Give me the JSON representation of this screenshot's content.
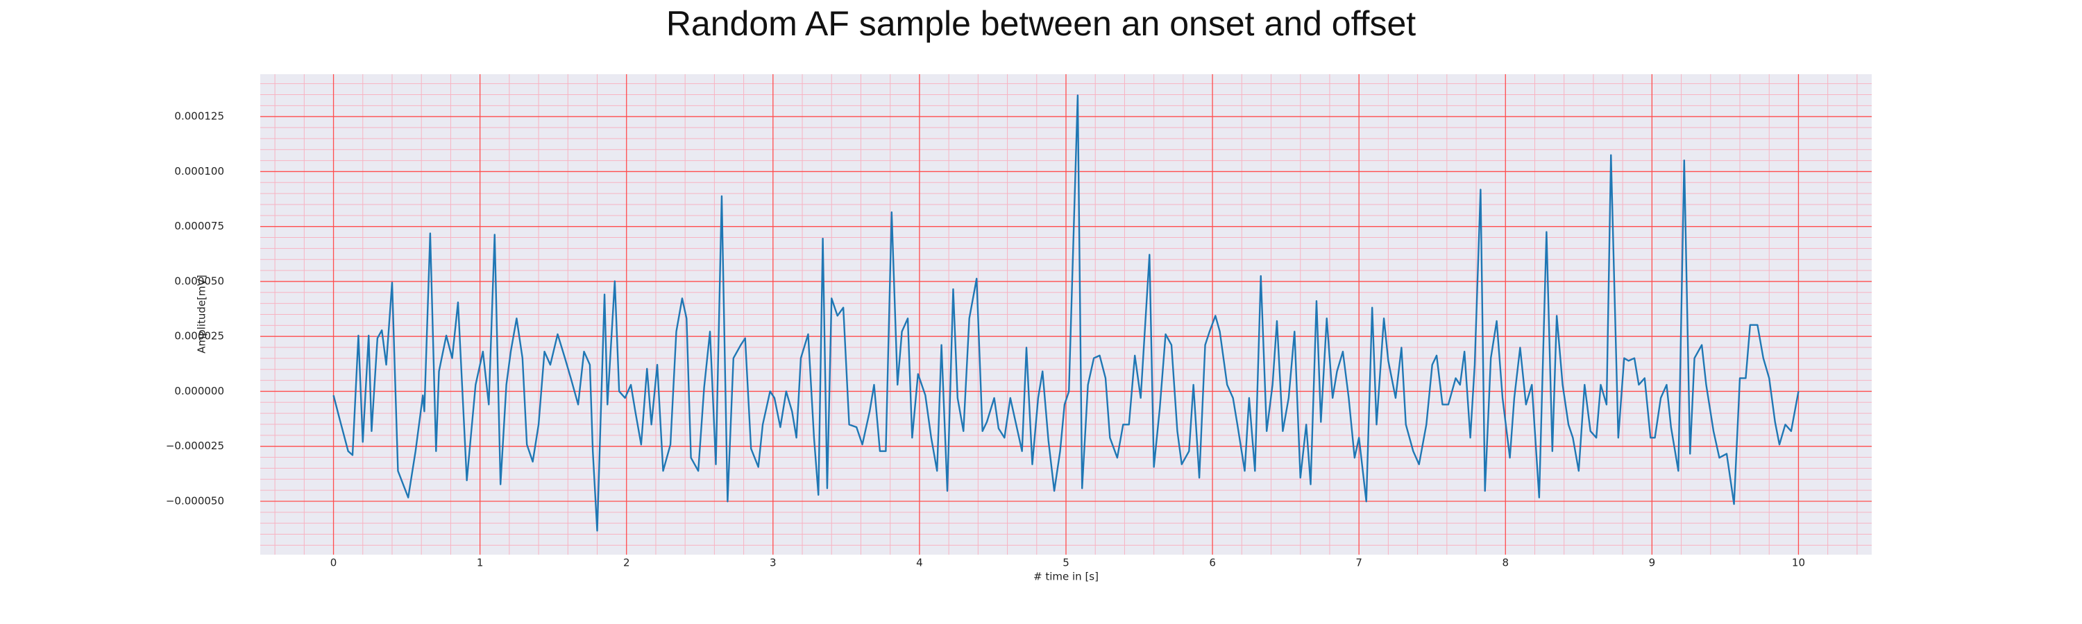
{
  "chart_data": {
    "type": "line",
    "title": "Random AF sample between an onset and offset",
    "xlabel": "# time in [s]",
    "ylabel": "Amplitude[mV]",
    "color": "#1f77b4",
    "grid": true,
    "minor_grid": true,
    "background": "#eaeaf2",
    "grid_color": "#ff4d4d",
    "minor_grid_color": "#f7b3c2",
    "xlim": [
      -0.5,
      10.5
    ],
    "ylim": [
      -7.43e-05,
      0.0001443
    ],
    "xticks": [
      0,
      1,
      2,
      3,
      4,
      5,
      6,
      7,
      8,
      9,
      10
    ],
    "yticks": [
      {
        "value": -5e-05,
        "label": "−0.000050"
      },
      {
        "value": -2.5e-05,
        "label": "−0.000025"
      },
      {
        "value": 0,
        "label": "0.000000"
      },
      {
        "value": 2.5e-05,
        "label": "0.000025"
      },
      {
        "value": 5e-05,
        "label": "0.000050"
      },
      {
        "value": 7.5e-05,
        "label": "0.000075"
      },
      {
        "value": 0.0001,
        "label": "0.000100"
      },
      {
        "value": 0.000125,
        "label": "0.000125"
      }
    ],
    "x": [
      0,
      0.04,
      0.1,
      0.13,
      0.17,
      0.2,
      0.24,
      0.26,
      0.3,
      0.33,
      0.36,
      0.4,
      0.44,
      0.51,
      0.56,
      0.61,
      0.62,
      0.66,
      0.7,
      0.72,
      0.77,
      0.81,
      0.85,
      0.91,
      0.97,
      1.02,
      1.06,
      1.1,
      1.14,
      1.18,
      1.21,
      1.25,
      1.29,
      1.32,
      1.36,
      1.4,
      1.44,
      1.48,
      1.53,
      1.58,
      1.62,
      1.67,
      1.71,
      1.75,
      1.77,
      1.8,
      1.85,
      1.87,
      1.92,
      1.95,
      1.99,
      2.03,
      2.06,
      2.1,
      2.14,
      2.17,
      2.21,
      2.25,
      2.3,
      2.34,
      2.38,
      2.41,
      2.44,
      2.49,
      2.53,
      2.57,
      2.61,
      2.65,
      2.69,
      2.73,
      2.78,
      2.81,
      2.85,
      2.9,
      2.93,
      2.98,
      3.01,
      3.05,
      3.09,
      3.13,
      3.16,
      3.19,
      3.24,
      3.28,
      3.31,
      3.34,
      3.37,
      3.4,
      3.44,
      3.48,
      3.52,
      3.57,
      3.61,
      3.66,
      3.69,
      3.73,
      3.77,
      3.81,
      3.85,
      3.88,
      3.92,
      3.95,
      3.99,
      4.04,
      4.08,
      4.12,
      4.15,
      4.19,
      4.23,
      4.26,
      4.3,
      4.34,
      4.39,
      4.43,
      4.46,
      4.51,
      4.54,
      4.58,
      4.62,
      4.65,
      4.7,
      4.73,
      4.77,
      4.81,
      4.84,
      4.88,
      4.92,
      4.96,
      4.99,
      5.02,
      5.08,
      5.11,
      5.15,
      5.19,
      5.23,
      5.27,
      5.3,
      5.35,
      5.39,
      5.43,
      5.47,
      5.51,
      5.57,
      5.6,
      5.64,
      5.68,
      5.72,
      5.76,
      5.79,
      5.84,
      5.87,
      5.91,
      5.95,
      5.98,
      6.02,
      6.05,
      6.1,
      6.14,
      6.17,
      6.22,
      6.25,
      6.29,
      6.33,
      6.37,
      6.41,
      6.44,
      6.48,
      6.52,
      6.56,
      6.6,
      6.64,
      6.67,
      6.71,
      6.74,
      6.78,
      6.82,
      6.85,
      6.89,
      6.93,
      6.97,
      7.0,
      7.05,
      7.09,
      7.12,
      7.17,
      7.2,
      7.25,
      7.29,
      7.32,
      7.37,
      7.41,
      7.46,
      7.5,
      7.53,
      7.57,
      7.61,
      7.66,
      7.69,
      7.72,
      7.76,
      7.79,
      7.83,
      7.86,
      7.9,
      7.94,
      7.98,
      8.03,
      8.06,
      8.1,
      8.14,
      8.18,
      8.23,
      8.28,
      8.32,
      8.35,
      8.39,
      8.43,
      8.46,
      8.5,
      8.54,
      8.58,
      8.62,
      8.65,
      8.69,
      8.72,
      8.77,
      8.81,
      8.84,
      8.88,
      8.91,
      8.95,
      8.99,
      9.02,
      9.06,
      9.1,
      9.13,
      9.18,
      9.22,
      9.26,
      9.29,
      9.34,
      9.37,
      9.42,
      9.46,
      9.51,
      9.56,
      9.6,
      9.64,
      9.67,
      9.72,
      9.76,
      9.8,
      9.84,
      9.87,
      9.91,
      9.95,
      10.0
    ],
    "values": [
      -1.8e-06,
      -1.21e-05,
      -2.72e-05,
      -2.9e-05,
      2.54e-05,
      -2.3e-05,
      2.54e-05,
      -1.81e-05,
      2.42e-05,
      2.78e-05,
      1.21e-05,
      4.95e-05,
      -3.62e-05,
      -4.83e-05,
      -2.72e-05,
      -1.8e-06,
      -9.1e-06,
      7.19e-05,
      -2.72e-05,
      9.1e-06,
      2.54e-05,
      1.51e-05,
      4.05e-05,
      -4.05e-05,
      3e-06,
      1.81e-05,
      -6e-06,
      7.13e-05,
      -4.23e-05,
      3e-06,
      1.81e-05,
      3.32e-05,
      1.51e-05,
      -2.42e-05,
      -3.2e-05,
      -1.51e-05,
      1.81e-05,
      1.21e-05,
      2.6e-05,
      1.51e-05,
      6e-06,
      -6e-06,
      1.81e-05,
      1.21e-05,
      -2.72e-05,
      -6.34e-05,
      4.41e-05,
      -6e-06,
      5.01e-05,
      0,
      -3e-06,
      3e-06,
      -9.1e-06,
      -2.42e-05,
      1.03e-05,
      -1.51e-05,
      1.21e-05,
      -3.62e-05,
      -2.42e-05,
      2.72e-05,
      4.23e-05,
      3.32e-05,
      -3.02e-05,
      -3.62e-05,
      1.8e-06,
      2.72e-05,
      -3.32e-05,
      8.88e-05,
      -5.01e-05,
      1.51e-05,
      2.11e-05,
      2.42e-05,
      -2.6e-05,
      -3.44e-05,
      -1.51e-05,
      0,
      -3e-06,
      -1.63e-05,
      0,
      -9.1e-06,
      -2.11e-05,
      1.51e-05,
      2.6e-05,
      -2.11e-05,
      -4.71e-05,
      6.95e-05,
      -4.41e-05,
      4.23e-05,
      3.44e-05,
      3.81e-05,
      -1.51e-05,
      -1.63e-05,
      -2.42e-05,
      -9.1e-06,
      3e-06,
      -2.72e-05,
      -2.72e-05,
      8.15e-05,
      3e-06,
      2.72e-05,
      3.32e-05,
      -2.11e-05,
      7.9e-06,
      -1.8e-06,
      -2.11e-05,
      -3.62e-05,
      2.11e-05,
      -4.53e-05,
      4.65e-05,
      -3e-06,
      -1.81e-05,
      3.32e-05,
      5.13e-05,
      -1.81e-05,
      -1.39e-05,
      -3e-06,
      -1.69e-05,
      -2.11e-05,
      -3e-06,
      -1.21e-05,
      -2.72e-05,
      1.99e-05,
      -3.32e-05,
      -3e-06,
      9.1e-06,
      -2.23e-05,
      -4.53e-05,
      -2.72e-05,
      -6e-06,
      0,
      0.0001347,
      -4.41e-05,
      3e-06,
      1.51e-05,
      1.63e-05,
      6e-06,
      -2.11e-05,
      -3.02e-05,
      -1.51e-05,
      -1.51e-05,
      1.63e-05,
      -3e-06,
      6.22e-05,
      -3.44e-05,
      -7.9e-06,
      2.6e-05,
      2.11e-05,
      -1.81e-05,
      -3.32e-05,
      -2.72e-05,
      3e-06,
      -3.93e-05,
      2.11e-05,
      2.72e-05,
      3.44e-05,
      2.72e-05,
      3e-06,
      -3e-06,
      -1.51e-05,
      -3.62e-05,
      -3e-06,
      -3.62e-05,
      5.25e-05,
      -1.81e-05,
      3e-06,
      3.2e-05,
      -1.81e-05,
      -3e-06,
      2.72e-05,
      -3.93e-05,
      -1.51e-05,
      -4.23e-05,
      4.11e-05,
      -1.39e-05,
      3.32e-05,
      -3e-06,
      9.1e-06,
      1.81e-05,
      -3e-06,
      -3.02e-05,
      -2.11e-05,
      -5.01e-05,
      3.81e-05,
      -1.51e-05,
      3.32e-05,
      1.39e-05,
      -3e-06,
      1.99e-05,
      -1.51e-05,
      -2.72e-05,
      -3.32e-05,
      -1.51e-05,
      1.21e-05,
      1.63e-05,
      -6e-06,
      -6e-06,
      6e-06,
      3e-06,
      1.81e-05,
      -2.11e-05,
      1.21e-05,
      9.18e-05,
      -4.53e-05,
      1.51e-05,
      3.2e-05,
      -3e-06,
      -3.02e-05,
      -3e-06,
      1.99e-05,
      -6e-06,
      3e-06,
      -4.83e-05,
      7.25e-05,
      -2.72e-05,
      3.44e-05,
      3e-06,
      -1.51e-05,
      -2.11e-05,
      -3.62e-05,
      3e-06,
      -1.81e-05,
      -2.11e-05,
      3e-06,
      -6e-06,
      0.0001075,
      -2.11e-05,
      1.51e-05,
      1.39e-05,
      1.51e-05,
      3e-06,
      6e-06,
      -2.11e-05,
      -2.11e-05,
      -3e-06,
      3e-06,
      -1.63e-05,
      -3.62e-05,
      0.0001051,
      -2.84e-05,
      1.51e-05,
      2.11e-05,
      3e-06,
      -1.81e-05,
      -3.02e-05,
      -2.84e-05,
      -5.13e-05,
      6e-06,
      6e-06,
      3.02e-05,
      3.02e-05,
      1.51e-05,
      6e-06,
      -1.39e-05,
      -2.42e-05,
      -1.51e-05,
      -1.81e-05,
      0
    ]
  }
}
